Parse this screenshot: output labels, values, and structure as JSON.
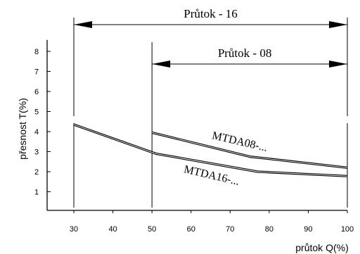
{
  "chart_data": {
    "type": "line",
    "xlabel": "průtok Q(%)",
    "ylabel": "přesnost T(%)",
    "xlim": [
      25,
      100
    ],
    "ylim": [
      0,
      8.5
    ],
    "x_ticks": [
      30,
      40,
      50,
      60,
      70,
      80,
      90,
      100
    ],
    "y_ticks": [
      1,
      2,
      3,
      4,
      5,
      6,
      7,
      8
    ],
    "grid": false,
    "ranges": [
      {
        "label": "Průtok - 16",
        "from": 30,
        "to": 100
      },
      {
        "label": "Průtok - 08",
        "from": 50,
        "to": 100
      }
    ],
    "series": [
      {
        "name": "MTDA08-...",
        "x": [
          50,
          75,
          100
        ],
        "y": [
          3.95,
          2.75,
          2.2
        ]
      },
      {
        "name": "MTDA16-...",
        "x": [
          30,
          51,
          77,
          100
        ],
        "y": [
          4.35,
          2.9,
          2.0,
          1.78
        ]
      }
    ]
  }
}
